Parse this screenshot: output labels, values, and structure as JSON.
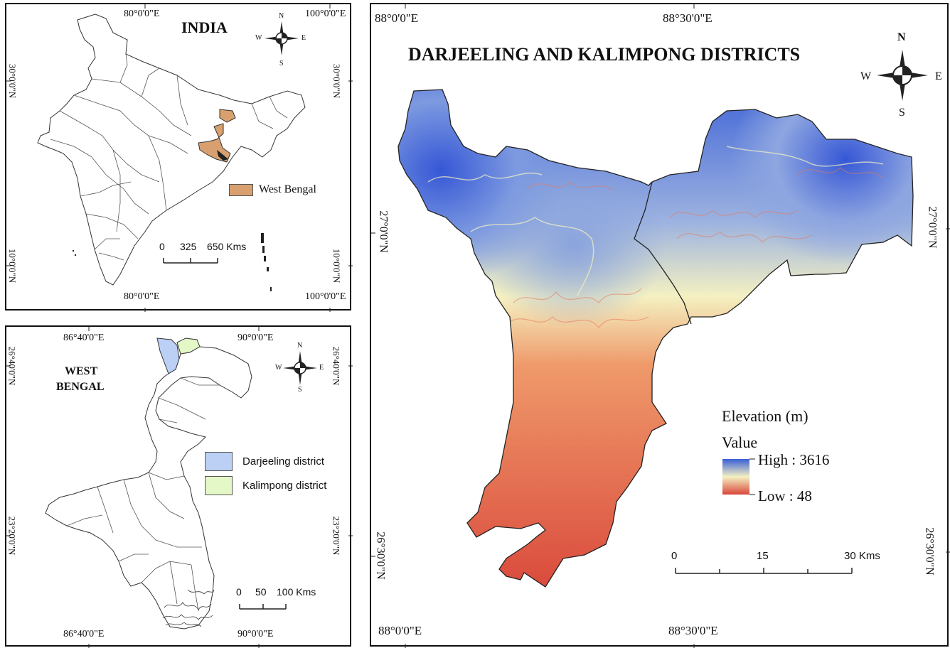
{
  "india_panel": {
    "title": "INDIA",
    "coords": {
      "top_left": "80°0'0\"E",
      "top_right": "100°0'0\"E",
      "bottom_left": "80°0'0\"E",
      "bottom_right": "100°0'0\"E",
      "left_upper": "30°0'0\"N",
      "left_lower": "10°0'0\"N",
      "right_upper": "30°0'0\"N",
      "right_lower": "10°0'0\"N"
    },
    "legend": {
      "label": "West Bengal",
      "color": "#d9a06f"
    },
    "scale": {
      "ticks": [
        "0",
        "325",
        "650 Kms"
      ]
    },
    "compass": {
      "n": "N",
      "s": "S",
      "e": "E",
      "w": "W"
    }
  },
  "wb_panel": {
    "title_line1": "WEST",
    "title_line2": "BENGAL",
    "coords": {
      "top_left": "86°40'0\"E",
      "top_right": "90°0'0\"E",
      "bottom_left": "86°40'0\"E",
      "bottom_right": "90°0'0\"E",
      "left_upper": "26°40'0\"N",
      "left_lower": "23°20'0\"N",
      "right_upper": "26°40'0\"N",
      "right_lower": "23°20'0\"N"
    },
    "legend": [
      {
        "label": "Darjeeling district",
        "color": "#bcd0f5"
      },
      {
        "label": "Kalimpong district",
        "color": "#e4f7c6"
      }
    ],
    "scale": {
      "ticks": [
        "0",
        "50",
        "100 Kms"
      ]
    },
    "compass": {
      "n": "N",
      "s": "S",
      "e": "E",
      "w": "W"
    }
  },
  "main_panel": {
    "title": "DARJEELING AND KALIMPONG DISTRICTS",
    "coords": {
      "top_left": "88°0'0\"E",
      "top_right": "88°30'0\"E",
      "bottom_left": "88°0'0\"E",
      "bottom_right": "88°30'0\"E",
      "left_upper": "27°0'0\"N",
      "left_lower": "26°30'0\"N",
      "right_upper": "27°0'0\"N",
      "right_lower": "26°30'0\"N"
    },
    "legend": {
      "heading": "Elevation (m)",
      "subheading": "Value",
      "high": "High : 3616",
      "low": "Low : 48",
      "color_high": "#3a5fd6",
      "color_mid": "#f4f1c2",
      "color_low": "#d9463a"
    },
    "scale": {
      "ticks": [
        "0",
        "15",
        "30 Kms"
      ]
    },
    "compass": {
      "n": "N",
      "s": "S",
      "e": "E",
      "w": "W"
    }
  }
}
